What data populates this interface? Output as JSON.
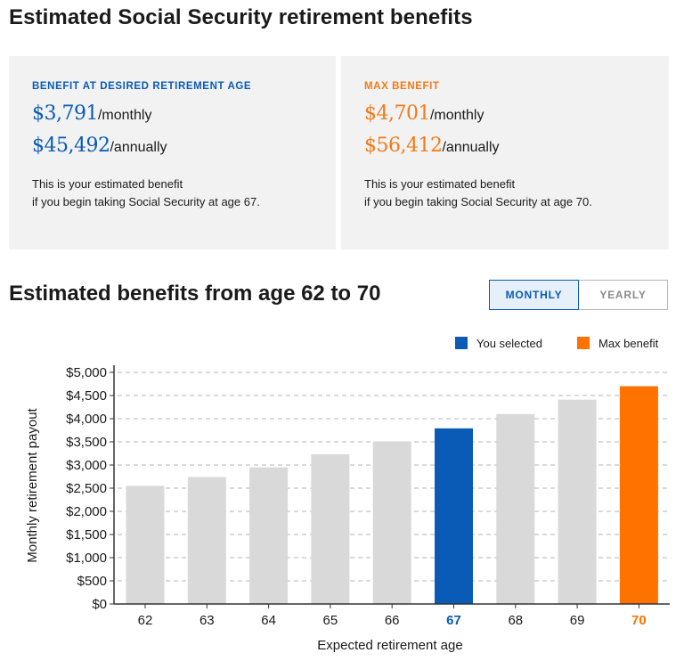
{
  "page_title": "Estimated Social Security retirement benefits",
  "cards": {
    "desired": {
      "heading": "BENEFIT AT DESIRED RETIREMENT AGE",
      "monthly_amount": "$3,791",
      "monthly_unit": "/monthly",
      "annual_amount": "$45,492",
      "annual_unit": "/annually",
      "note_line1": "This is your estimated benefit",
      "note_line2": "if you begin taking Social Security at age 67."
    },
    "max": {
      "heading": "MAX BENEFIT",
      "monthly_amount": "$4,701",
      "monthly_unit": "/monthly",
      "annual_amount": "$56,412",
      "annual_unit": "/annually",
      "note_line1": "This is your estimated benefit",
      "note_line2": "if you begin taking Social Security at age 70."
    }
  },
  "section_title": "Estimated benefits from age 62 to 70",
  "toggle": {
    "monthly": "MONTHLY",
    "yearly": "YEARLY",
    "selected": "monthly"
  },
  "colors": {
    "selected": "#0a5bb5",
    "max": "#ff7200",
    "default": "#d9d9d9"
  },
  "chart_data": {
    "type": "bar",
    "categories": [
      "62",
      "63",
      "64",
      "65",
      "66",
      "67",
      "68",
      "69",
      "70"
    ],
    "values": [
      2550,
      2740,
      2950,
      3230,
      3510,
      3791,
      4100,
      4410,
      4701
    ],
    "highlight": {
      "selected": "67",
      "max": "70"
    },
    "legend": {
      "selected": "You selected",
      "max": "Max benefit",
      "position": "top-right"
    },
    "xlabel": "Expected retirement age",
    "ylabel": "Monthly retirement payout",
    "ylim": [
      0,
      5000
    ],
    "yticks": [
      0,
      500,
      1000,
      1500,
      2000,
      2500,
      3000,
      3500,
      4000,
      4500,
      5000
    ],
    "ytick_labels": [
      "$0",
      "$500",
      "$1,000",
      "$1,500",
      "$2,000",
      "$2,500",
      "$3,000",
      "$3,500",
      "$4,000",
      "$4,500",
      "$5,000"
    ],
    "grid": true
  }
}
